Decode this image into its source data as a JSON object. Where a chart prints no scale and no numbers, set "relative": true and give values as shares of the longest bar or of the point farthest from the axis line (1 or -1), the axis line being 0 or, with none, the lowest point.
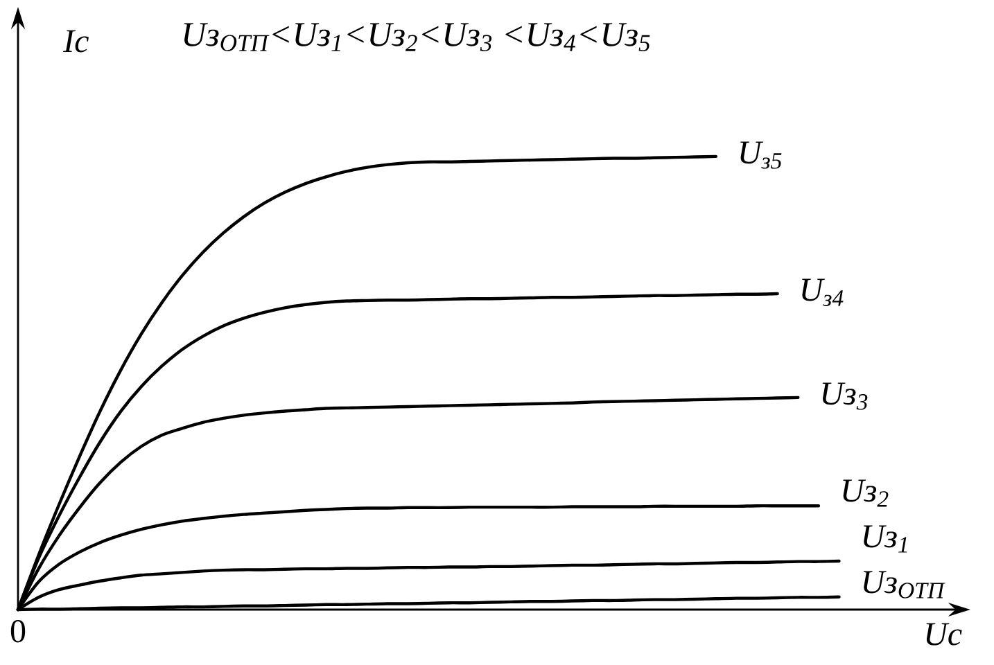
{
  "chart_data": {
    "type": "line",
    "relative": true,
    "title": "Uз$_{ОТП}$<Uз$_{1}$<Uз$_{2}$<Uз$_{3}$ <Uз$_{4}$<Uз$_{5}$",
    "xlabel": "Uс",
    "ylabel": "Iс",
    "line_style": "solid",
    "annotations": [
      "0"
    ],
    "categories": [
      null,
      null,
      null,
      null,
      null,
      null,
      null,
      null,
      null,
      null,
      null,
      null,
      null,
      null,
      null,
      null,
      null,
      null,
      null,
      null,
      null,
      null,
      null,
      null,
      null,
      null,
      null,
      null,
      null,
      null,
      null,
      null,
      null,
      null,
      null,
      null,
      null,
      null,
      null,
      null,
      null
    ],
    "series": [
      {
        "name": "U$_{з5}$",
        "color": "#000000",
        "values": [
          0,
          0.12,
          0.232,
          0.338,
          0.438,
          0.528,
          0.608,
          0.677,
          0.737,
          0.788,
          0.831,
          0.867,
          0.897,
          0.921,
          0.94,
          0.955,
          0.967,
          0.976,
          0.982,
          0.986,
          0.988,
          0.988,
          0.989,
          0.99,
          0.991,
          0.992,
          0.993,
          0.994,
          0.995,
          0.996,
          0.996,
          0.997,
          0.998,
          0.999,
          1,
          null,
          null,
          null,
          null,
          null,
          null
        ]
      },
      {
        "name": "U$_{з4}$",
        "color": "#000000",
        "values": [
          0,
          0.113,
          0.207,
          0.292,
          0.37,
          0.437,
          0.492,
          0.537,
          0.574,
          0.603,
          0.626,
          0.643,
          0.656,
          0.666,
          0.673,
          0.678,
          0.681,
          0.682,
          0.683,
          0.683,
          0.684,
          0.685,
          0.686,
          0.686,
          0.687,
          0.688,
          0.689,
          0.689,
          0.69,
          0.691,
          0.692,
          0.693,
          0.693,
          0.694,
          0.695,
          0.696,
          0.696,
          0.697,
          null,
          null,
          null
        ]
      },
      {
        "name": "Uз$_{3}$",
        "color": "#000000",
        "values": [
          0,
          0.09,
          0.163,
          0.225,
          0.28,
          0.325,
          0.36,
          0.385,
          0.4,
          0.413,
          0.422,
          0.429,
          0.434,
          0.438,
          0.441,
          0.444,
          0.445,
          0.446,
          0.447,
          0.448,
          0.449,
          0.45,
          0.451,
          0.452,
          0.453,
          0.454,
          0.455,
          0.456,
          0.458,
          0.459,
          0.46,
          0.461,
          0.462,
          0.463,
          0.464,
          0.465,
          0.466,
          0.467,
          0.468,
          null,
          null
        ]
      },
      {
        "name": "Uз$_{2}$",
        "color": "#000000",
        "values": [
          0,
          0.061,
          0.1,
          0.127,
          0.148,
          0.164,
          0.177,
          0.187,
          0.195,
          0.201,
          0.206,
          0.21,
          0.213,
          0.216,
          0.219,
          0.221,
          0.223,
          0.224,
          0.224,
          0.225,
          0.225,
          0.225,
          0.226,
          0.226,
          0.226,
          0.226,
          0.226,
          0.227,
          0.227,
          0.227,
          0.227,
          0.228,
          0.228,
          0.228,
          0.228,
          0.228,
          0.229,
          0.229,
          0.229,
          0.229,
          null
        ]
      },
      {
        "name": "Uз$_{1}$",
        "color": "#000000",
        "values": [
          0,
          0.027,
          0.044,
          0.054,
          0.063,
          0.07,
          0.076,
          0.079,
          0.082,
          0.085,
          0.087,
          0.088,
          0.088,
          0.089,
          0.09,
          0.09,
          0.091,
          0.091,
          0.092,
          0.093,
          0.093,
          0.094,
          0.094,
          0.095,
          0.095,
          0.096,
          0.097,
          0.098,
          0.098,
          0.099,
          0.1,
          0.101,
          0.101,
          0.102,
          0.103,
          0.104,
          0.104,
          0.105,
          0.106,
          0.106,
          0.107
        ]
      },
      {
        "name": "Uз$_{ОТП}$",
        "color": "#000000",
        "values": [
          0,
          0.001,
          0.001,
          0.002,
          0.003,
          0.004,
          0.004,
          0.005,
          0.006,
          0.006,
          0.007,
          0.008,
          0.008,
          0.009,
          0.01,
          0.011,
          0.011,
          0.012,
          0.013,
          0.013,
          0.014,
          0.015,
          0.015,
          0.016,
          0.017,
          0.018,
          0.018,
          0.019,
          0.02,
          0.02,
          0.021,
          0.022,
          0.022,
          0.023,
          0.024,
          0.025,
          0.025,
          0.026,
          0.027,
          0.027,
          0.028
        ]
      }
    ]
  }
}
